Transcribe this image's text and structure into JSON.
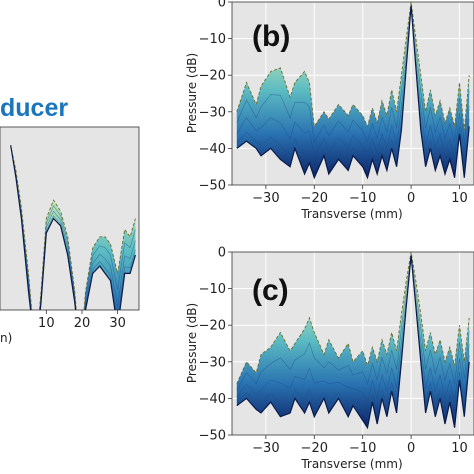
{
  "header": {
    "text": "ducer"
  },
  "chart_data": [
    {
      "id": "a",
      "type": "area",
      "title": "",
      "xlabel": "",
      "ylabel": "",
      "clipped_axis_label_fragment": "n)",
      "xlim": [
        -3,
        36
      ],
      "ylim": [
        -50,
        0
      ],
      "xticks": [
        10,
        20,
        30
      ],
      "xtick_labels": [
        "10",
        "20",
        "30"
      ],
      "grid": false,
      "background": "#e5e5e5",
      "envelope": {
        "x": [
          0,
          1.5,
          3,
          5,
          7,
          8.5,
          10,
          12,
          14,
          16,
          18,
          19.5,
          21,
          23,
          25,
          26.5,
          28,
          30,
          32,
          33.5,
          35
        ],
        "upper": [
          -5,
          -12,
          -22,
          -40,
          -62,
          -45,
          -25,
          -20,
          -23,
          -30,
          -45,
          -63,
          -45,
          -33,
          -30,
          -30,
          -32,
          -40,
          -28,
          -30,
          -25
        ],
        "lower": [
          -5,
          -14,
          -25,
          -45,
          -62,
          -48,
          -29,
          -25,
          -27,
          -35,
          -48,
          -63,
          -50,
          -40,
          -38,
          -40,
          -42,
          -55,
          -40,
          -40,
          -35
        ]
      }
    },
    {
      "id": "b",
      "type": "area",
      "panel_label": "(b)",
      "xlabel": "Transverse (mm)",
      "ylabel": "Pressure (dB)",
      "xlim": [
        -37,
        13
      ],
      "ylim": [
        -50,
        0
      ],
      "xticks": [
        -30,
        -20,
        -10,
        0,
        10
      ],
      "xtick_labels": [
        "−30",
        "−20",
        "−10",
        "0",
        "10"
      ],
      "yticks": [
        0,
        -10,
        -20,
        -30,
        -40,
        -50
      ],
      "ytick_labels": [
        "0",
        "−10",
        "−20",
        "−30",
        "−40",
        "−50"
      ],
      "grid": true,
      "background": "#e5e5e5",
      "envelope": {
        "x": [
          -36,
          -34,
          -32,
          -31,
          -29,
          -27,
          -25,
          -24,
          -22,
          -21,
          -20,
          -18,
          -17,
          -15,
          -13,
          -12,
          -10,
          -9,
          -8,
          -7,
          -6,
          -5,
          -4,
          -3,
          -2,
          -1,
          0,
          1,
          2,
          3,
          4,
          5,
          6,
          7,
          8,
          9,
          10,
          11,
          12
        ],
        "upper": [
          -30,
          -22,
          -28,
          -23,
          -19,
          -18,
          -26,
          -22,
          -19,
          -22,
          -34,
          -30,
          -32,
          -28,
          -31,
          -28,
          -31,
          -34,
          -29,
          -33,
          -27,
          -31,
          -24,
          -30,
          -20,
          -10,
          0,
          -10,
          -20,
          -30,
          -24,
          -31,
          -27,
          -33,
          -29,
          -34,
          -22,
          -35,
          -20
        ],
        "lower": [
          -40,
          -38,
          -40,
          -42,
          -40,
          -43,
          -45,
          -40,
          -47,
          -44,
          -48,
          -42,
          -47,
          -43,
          -46,
          -42,
          -45,
          -48,
          -43,
          -47,
          -42,
          -46,
          -40,
          -45,
          -35,
          -18,
          -1,
          -18,
          -35,
          -45,
          -40,
          -46,
          -42,
          -47,
          -43,
          -48,
          -36,
          -48,
          -34
        ]
      }
    },
    {
      "id": "c",
      "type": "area",
      "panel_label": "(c)",
      "xlabel": "Transverse (mm)",
      "ylabel": "Pressure (dB)",
      "xlim": [
        -37,
        13
      ],
      "ylim": [
        -50,
        0
      ],
      "xticks": [
        -30,
        -20,
        -10,
        0,
        10
      ],
      "xtick_labels": [
        "−30",
        "−20",
        "−10",
        "0",
        "10"
      ],
      "yticks": [
        0,
        -10,
        -20,
        -30,
        -40,
        -50
      ],
      "ytick_labels": [
        "0",
        "−10",
        "−20",
        "−30",
        "−40",
        "−50"
      ],
      "grid": true,
      "background": "#e5e5e5",
      "envelope": {
        "x": [
          -36,
          -34,
          -32,
          -31,
          -29,
          -27,
          -25,
          -24,
          -22,
          -21,
          -20,
          -18,
          -17,
          -15,
          -13,
          -12,
          -10,
          -9,
          -8,
          -7,
          -6,
          -5,
          -4,
          -3,
          -2,
          -1,
          0,
          1,
          2,
          3,
          4,
          5,
          6,
          7,
          8,
          9,
          10,
          11,
          12
        ],
        "upper": [
          -36,
          -30,
          -33,
          -28,
          -26,
          -22,
          -27,
          -25,
          -21,
          -18,
          -22,
          -28,
          -24,
          -29,
          -25,
          -30,
          -27,
          -31,
          -26,
          -30,
          -24,
          -28,
          -22,
          -27,
          -17,
          -8,
          0,
          -8,
          -17,
          -27,
          -22,
          -28,
          -24,
          -30,
          -26,
          -31,
          -20,
          -30,
          -18
        ],
        "lower": [
          -42,
          -40,
          -43,
          -44,
          -41,
          -45,
          -44,
          -40,
          -44,
          -41,
          -45,
          -40,
          -44,
          -40,
          -45,
          -42,
          -46,
          -48,
          -41,
          -47,
          -40,
          -45,
          -38,
          -44,
          -30,
          -15,
          -1,
          -15,
          -30,
          -44,
          -38,
          -45,
          -40,
          -47,
          -41,
          -48,
          -35,
          -45,
          -30
        ]
      }
    }
  ]
}
